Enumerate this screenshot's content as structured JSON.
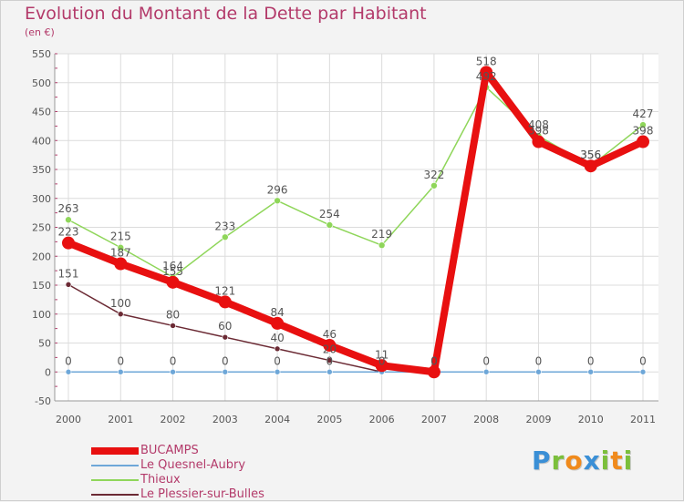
{
  "header": {
    "title": "Evolution du Montant de la Dette par Habitant",
    "subtitle": "(en €)"
  },
  "logo": {
    "letters": [
      "P",
      "r",
      "o",
      "x",
      "i",
      "t",
      "i"
    ],
    "colors": [
      "#3a8fd6",
      "#7bbf3b",
      "#f08a1c",
      "#3a8fd6",
      "#7bbf3b",
      "#f08a1c",
      "#7bbf3b"
    ]
  },
  "chart_data": {
    "type": "line",
    "title": "Evolution du Montant de la Dette par Habitant",
    "ylabel": "(en €)",
    "xlabel": "",
    "x": [
      "2000",
      "2001",
      "2002",
      "2003",
      "2004",
      "2005",
      "2006",
      "2007",
      "2008",
      "2009",
      "2010",
      "2011"
    ],
    "ylim": [
      -50,
      550
    ],
    "yticks": [
      "-50",
      "0",
      "50",
      "100",
      "150",
      "200",
      "250",
      "300",
      "350",
      "400",
      "450",
      "500",
      "550"
    ],
    "grid": true,
    "legend_position": "bottom-left",
    "series": [
      {
        "name": "Le Plessier-sur-Bulles",
        "color": "#6b2a34",
        "values": [
          151,
          100,
          80,
          60,
          40,
          20,
          0,
          0,
          0,
          0,
          0,
          0
        ],
        "labels": [
          "151",
          "100",
          "80",
          "60",
          "40",
          "20",
          "",
          "",
          "",
          "",
          "",
          ""
        ]
      },
      {
        "name": "Le Quesnel-Aubry",
        "color": "#6ea7d8",
        "values": [
          0,
          0,
          0,
          0,
          0,
          0,
          0,
          0,
          0,
          0,
          0,
          0
        ],
        "labels": [
          "0",
          "0",
          "0",
          "0",
          "0",
          "0",
          "0",
          "0",
          "0",
          "0",
          "0",
          "0"
        ]
      },
      {
        "name": "Thieux",
        "color": "#8fd65a",
        "values": [
          263,
          215,
          164,
          233,
          296,
          254,
          219,
          322,
          492,
          408,
          356,
          427
        ],
        "labels": [
          "263",
          "215",
          "164",
          "233",
          "296",
          "254",
          "219",
          "322",
          "492",
          "408",
          "356",
          "427"
        ]
      },
      {
        "name": "BUCAMPS",
        "color": "#e81010",
        "values": [
          223,
          187,
          155,
          121,
          84,
          46,
          11,
          0,
          518,
          398,
          356,
          398
        ],
        "labels": [
          "223",
          "187",
          "155",
          "121",
          "84",
          "46",
          "11",
          "0",
          "518",
          "398",
          "356",
          "398"
        ]
      }
    ],
    "legend_order": [
      "BUCAMPS",
      "Le Quesnel-Aubry",
      "Thieux",
      "Le Plessier-sur-Bulles"
    ]
  }
}
